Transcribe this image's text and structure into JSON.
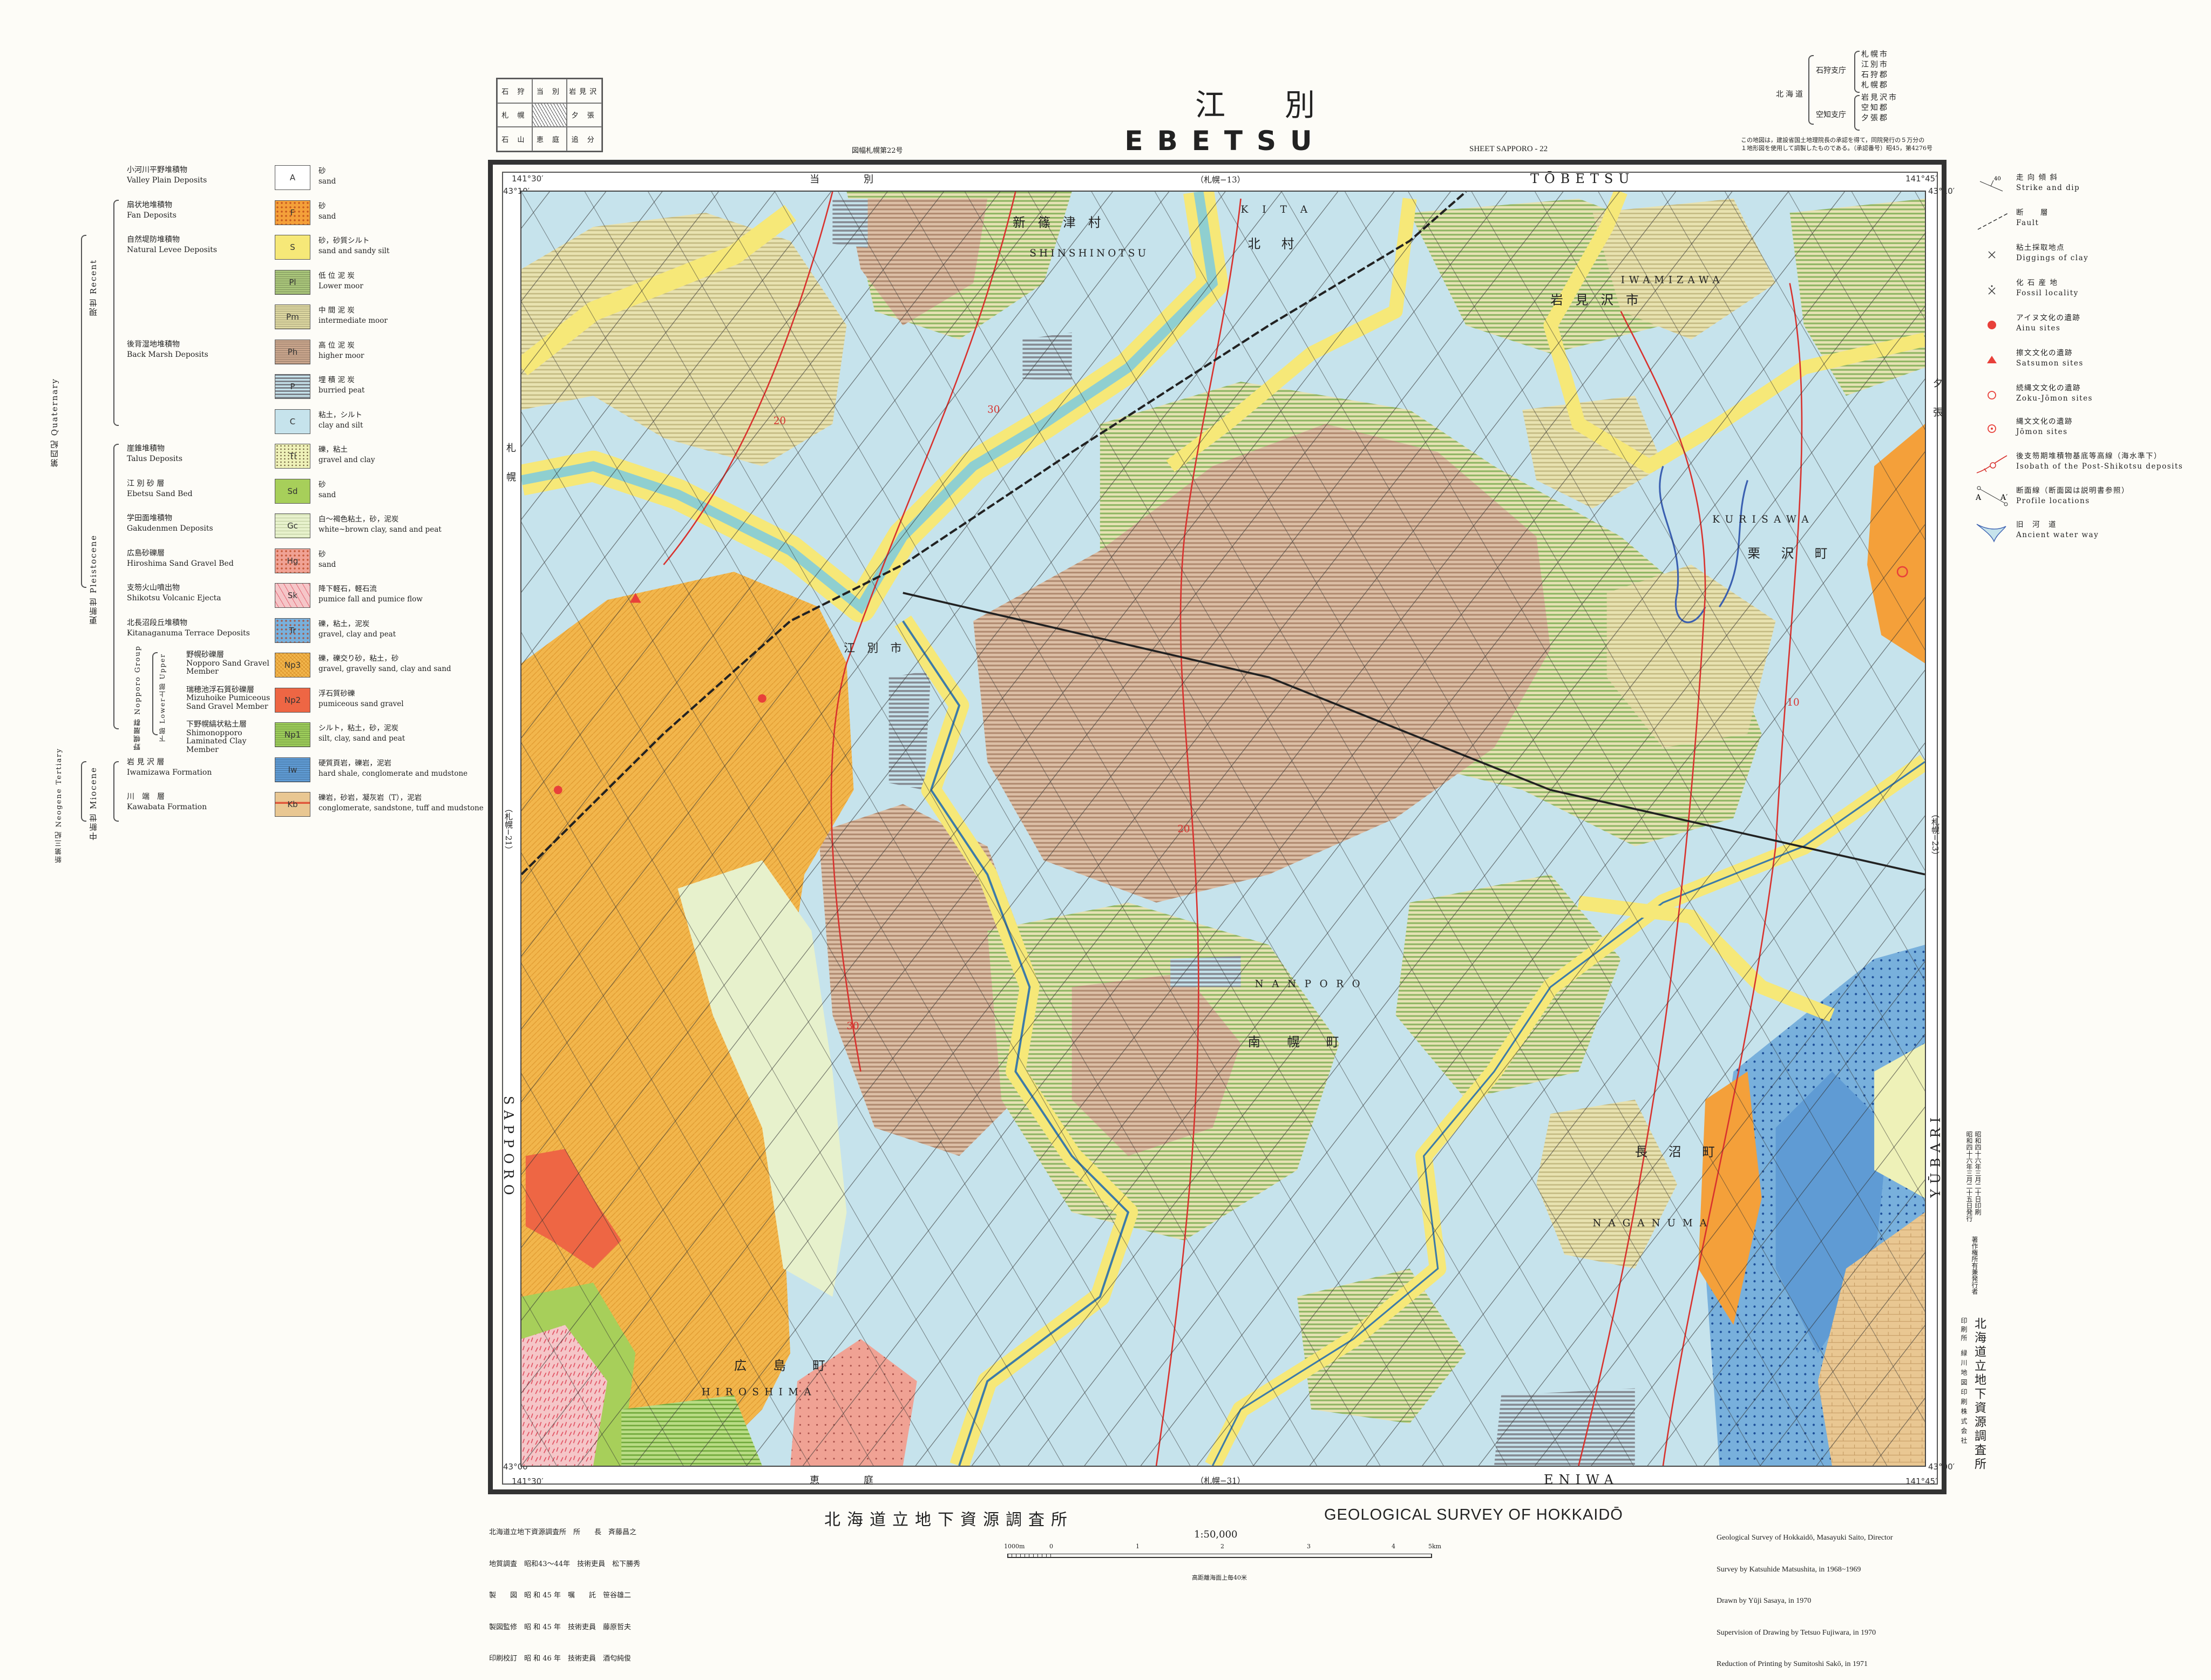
{
  "header": {
    "title_ja": "江別",
    "title_en": "EBETSU",
    "sheet_number_ja": "図幅札幌第22号",
    "sheet_en": "SHEET SAPPORO - 22",
    "index_grid": [
      "石 狩",
      "当 別",
      "岩見沢",
      "札 幌",
      "",
      "夕 張",
      "石 山",
      "恵 庭",
      "追 分"
    ],
    "admin": {
      "prefecture": "北海道",
      "subprefectures": [
        {
          "name": "石狩支庁",
          "units": [
            "札幌市",
            "江別市",
            "石狩郡",
            "札幌郡"
          ]
        },
        {
          "name": "空知支庁",
          "units": [
            "岩見沢市",
            "空知郡",
            "夕張郡"
          ]
        }
      ],
      "note": [
        "この地図は，建設省国土地理院長の承認を得て，同院発行の５万分の",
        "１地形図を使用して調製したものである。（承認番号）昭45，第4276号"
      ]
    }
  },
  "map": {
    "edges": {
      "top": {
        "ja": "当　　　　別",
        "sheet": "（札幌−13）",
        "en": "TŌBETSU"
      },
      "bottom": {
        "ja": "恵　　　　庭",
        "sheet": "（札幌−31）",
        "en": "ENIWA"
      },
      "left": {
        "ja": "札　　幌",
        "sheet": "（札幌−21）",
        "en": "SAPPORO"
      },
      "right": {
        "ja": "夕　　張",
        "sheet": "（札幌−23）",
        "en": "YŪBARI"
      }
    },
    "coords": {
      "lon_west": "141°30′",
      "lon_east": "141°45′",
      "lat_north": "43°10′",
      "lat_south": "43°00′"
    },
    "places": [
      {
        "ja": "新 篠 津 村",
        "en": "SHINSHINOTSU"
      },
      {
        "ja": "北 村",
        "en": "KITA"
      },
      {
        "ja": "岩 見 沢 市",
        "en": "IWAMIZAWA"
      },
      {
        "ja": "栗 沢 町",
        "en": "KURISAWA"
      },
      {
        "ja": "江 別 市",
        "en": "EBETSU"
      },
      {
        "ja": "南 幌 町",
        "en": "NANPORO"
      },
      {
        "ja": "長 沼 町",
        "en": "NAGANUMA"
      },
      {
        "ja": "広 島 町",
        "en": "HIROSHIMA"
      }
    ],
    "contours": [
      "30",
      "20",
      "10",
      "20",
      "30"
    ],
    "unit_colors": {
      "C": "#c6e3ec",
      "S": "#f6e878",
      "Pl": "#a9c57a",
      "Pm": "#dcd6a0",
      "Ph": "#c9a58c",
      "P": "#9aa0a8",
      "Np3": "#f2b64c",
      "Np2": "#ee6644",
      "Np1": "#9ccc5a",
      "Gc": "#e7f1cc",
      "Hg": "#f0a294",
      "Sk": "#f5c6c8",
      "Tr": "#78b0dc",
      "Tl": "#eef1b8",
      "Kb": "#e9c792",
      "F": "#f4a03a",
      "Iw": "#5f9bd4",
      "Sd": "#a7cf5a",
      "river": "#8fcfd0",
      "isobath": "#d8322e"
    }
  },
  "legend": {
    "eras": {
      "quaternary": "第四紀 Quaternary",
      "recent": "現世 Recent",
      "pleistocene": "更新世 Pleistocene",
      "neogene": "新第三紀 Neogene Tertiary",
      "miocene": "中新世 Miocene",
      "nopporo_group": "野幌層群 Nopporo Group",
      "upper": "上部 Upper",
      "lower": "下部 Lower"
    },
    "units": [
      {
        "code": "A",
        "name_ja": "小河川平野堆積物",
        "name_en": "Valley Plain Deposits",
        "desc_ja": "砂",
        "desc_en": "sand",
        "color": "#ffffff",
        "pattern": "plain"
      },
      {
        "code": "F",
        "name_ja": "扇状地堆積物",
        "name_en": "Fan Deposits",
        "desc_ja": "砂",
        "desc_en": "sand",
        "color": "#f4a03a",
        "pattern": "dots"
      },
      {
        "code": "S",
        "name_ja": "自然堤防堆積物",
        "name_en": "Natural Levee Deposits",
        "desc_ja": "砂，砂質シルト",
        "desc_en": "sand and sandy silt",
        "color": "#f6e878",
        "pattern": "plain"
      },
      {
        "code": "Pl",
        "name_ja": "",
        "name_en": "",
        "desc_ja": "低 位 泥 炭",
        "desc_en": "Lower moor",
        "color": "#a9c57a",
        "pattern": "hstripe"
      },
      {
        "code": "Pm",
        "name_ja": "",
        "name_en": "",
        "desc_ja": "中 間 泥 炭",
        "desc_en": "intermediate moor",
        "color": "#dcd6a0",
        "pattern": "hstripe"
      },
      {
        "code": "Ph",
        "name_ja": "後背湿地堆積物",
        "name_en": "Back Marsh Deposits",
        "desc_ja": "高 位 泥 炭",
        "desc_en": "higher moor",
        "color": "#c9a58c",
        "pattern": "hstripe"
      },
      {
        "code": "P",
        "name_ja": "",
        "name_en": "",
        "desc_ja": "埋 積 泥 炭",
        "desc_en": "burried peat",
        "color": "#9aa0a8",
        "pattern": "gstripe"
      },
      {
        "code": "C",
        "name_ja": "",
        "name_en": "",
        "desc_ja": "粘土，シルト",
        "desc_en": "clay and silt",
        "color": "#c6e3ec",
        "pattern": "plain"
      },
      {
        "code": "Tl",
        "name_ja": "崖錐堆積物",
        "name_en": "Talus Deposits",
        "desc_ja": "礫，粘土",
        "desc_en": "gravel and clay",
        "color": "#eef1b8",
        "pattern": "specks"
      },
      {
        "code": "Sd",
        "name_ja": "江 別 砂 層",
        "name_en": "Ebetsu Sand Bed",
        "desc_ja": "砂",
        "desc_en": "sand",
        "color": "#a7cf5a",
        "pattern": "plain"
      },
      {
        "code": "Gc",
        "name_ja": "学田面堆積物",
        "name_en": "Gakudenmen Deposits",
        "desc_ja": "白〜褐色粘土，砂，泥炭",
        "desc_en": "white~brown clay, sand and peat",
        "color": "#e7f1cc",
        "pattern": "brick"
      },
      {
        "code": "Hg",
        "name_ja": "広島砂礫層",
        "name_en": "Hiroshima Sand Gravel Bed",
        "desc_ja": "砂",
        "desc_en": "sand",
        "color": "#f0a294",
        "pattern": "dots"
      },
      {
        "code": "Sk",
        "name_ja": "支笏火山噴出物",
        "name_en": "Shikotsu Volcanic Ejecta",
        "desc_ja": "降下軽石，軽石流",
        "desc_en": "pumice fall and pumice flow",
        "color": "#f5c6c8",
        "pattern": "dashes"
      },
      {
        "code": "Tr",
        "name_ja": "北長沼段丘堆積物",
        "name_en": "Kitanaganuma Terrace Deposits",
        "desc_ja": "礫，粘土，泥炭",
        "desc_en": "gravel, clay and peat",
        "color": "#78b0dc",
        "pattern": "dots"
      },
      {
        "code": "Np3",
        "name_ja": "野幌砂礫層",
        "name_en": "Nopporo Sand Gravel Member",
        "desc_ja": "礫，礫交り砂，粘土，砂",
        "desc_en": "gravel, gravelly sand, clay and sand",
        "color": "#f2b64c",
        "pattern": "cross"
      },
      {
        "code": "Np2",
        "name_ja": "瑞穂池浮石質砂礫層",
        "name_en": "Mizuhoike Pumiceous Sand Gravel Member",
        "desc_ja": "浮石質砂礫",
        "desc_en": "pumiceous sand gravel",
        "color": "#ee6644",
        "pattern": "plain"
      },
      {
        "code": "Np1",
        "name_ja": "下野幌縞状粘土層",
        "name_en": "Shimonopporo Laminated Clay Member",
        "desc_ja": "シルト，粘土，砂，泥炭",
        "desc_en": "silt, clay, sand and peat",
        "color": "#9ccc5a",
        "pattern": "hstripe"
      },
      {
        "code": "Iw",
        "name_ja": "岩 見 沢 層",
        "name_en": "Iwamizawa Formation",
        "desc_ja": "硬質頁岩，礫岩，泥岩",
        "desc_en": "hard shale, conglomerate and mudstone",
        "color": "#5f9bd4",
        "pattern": "hstripe"
      },
      {
        "code": "Kb",
        "name_ja": "川　端　層",
        "name_en": "Kawabata Formation",
        "desc_ja": "礫岩，砂岩，凝灰岩（T），泥岩",
        "desc_en": "conglomerate, sandstone, tuff and mudstone",
        "color": "#e9c792",
        "pattern": "kb"
      }
    ],
    "symbols": [
      {
        "icon": "strike-dip-icon",
        "ja": "走 向 傾 斜",
        "en": "Strike and dip",
        "value": "40"
      },
      {
        "icon": "fault-icon",
        "ja": "断　　層",
        "en": "Fault"
      },
      {
        "icon": "clay-digging-icon",
        "ja": "粘土採取地点",
        "en": "Diggings of clay"
      },
      {
        "icon": "fossil-icon",
        "ja": "化 石 産 地",
        "en": "Fossil locality"
      },
      {
        "icon": "ainu-site-icon",
        "ja": "アイヌ文化の遺跡",
        "en": "Ainu sites"
      },
      {
        "icon": "satsumon-site-icon",
        "ja": "擦文文化の遺跡",
        "en": "Satsumon sites"
      },
      {
        "icon": "zoku-jomon-site-icon",
        "ja": "続縄文文化の遺跡",
        "en": "Zoku-Jōmon sites"
      },
      {
        "icon": "jomon-site-icon",
        "ja": "縄文文化の遺跡",
        "en": "Jōmon sites"
      },
      {
        "icon": "isobath-icon",
        "ja": "後支笏期堆積物基底等高線（海水準下）",
        "en": "Isobath of the Post-Shikotsu deposits"
      },
      {
        "icon": "profile-line-icon",
        "ja": "断面線（断面図は説明書参照）",
        "en": "Profile locations",
        "value": "A"
      },
      {
        "icon": "ancient-waterway-icon",
        "ja": "旧　河　道",
        "en": "Ancient water way"
      }
    ]
  },
  "footer": {
    "staff": [
      "北海道立地下資源調査所　所　　長　斉藤昌之",
      "地質調査　昭和43〜44年　技術吏員　松下勝秀",
      "製　　図　昭 和 45 年　嘱　　託　笹谷雄二",
      "製図監修　昭 和 45 年　技術吏員　藤原哲夫",
      "印刷校訂　昭 和 46 年　技術吏員　酒匂純俊"
    ],
    "org_ja": "北海道立地下資源調査所",
    "org_en": "GEOLOGICAL SURVEY OF HOKKAIDŌ",
    "scale": "1:50,000",
    "scale_ticks": [
      "1000m",
      "0",
      "1",
      "2",
      "3",
      "4",
      "5km"
    ],
    "contour_note": "高距離海面上毎40米",
    "credits_en": [
      "Geological Survey of Hokkaidō, Masayuki Saito, Director",
      "Survey by Katsuhide Matsushita, in 1968~1969",
      "Drawn by Yūji Sasaya, in 1970",
      "Supervision of Drawing by Tetsuo Fujiwara, in 1970",
      "Reduction of Printing by Sumitoshi Sakō, in 1971"
    ],
    "imprint": {
      "dates": [
        "昭和四十六年三月二十日印刷",
        "昭和四十六年三月二十五日発行"
      ],
      "publisher_label": "著作権所有兼発行者",
      "publisher": "北海道立地下資源調査所",
      "printer_label": "印刷所",
      "printer": "緑川地図印刷株式会社"
    }
  }
}
